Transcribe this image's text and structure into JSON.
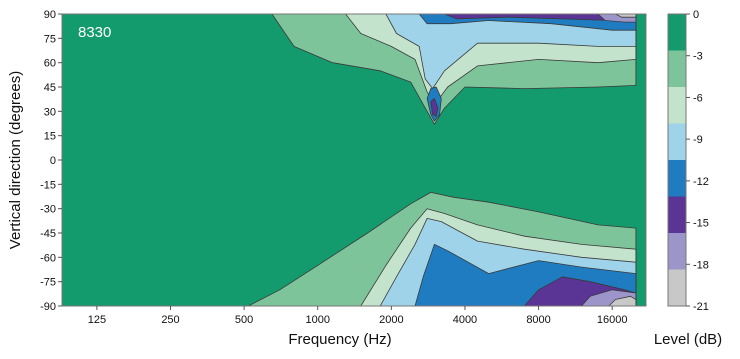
{
  "chart_data": {
    "type": "heatmap",
    "title": "",
    "annotation": "8330",
    "xlabel": "Frequency (Hz)",
    "ylabel": "Vertical direction (degrees)",
    "x_scale": "log",
    "xlim": [
      90,
      22000
    ],
    "ylim": [
      -90,
      90
    ],
    "x_ticks": [
      {
        "value": 125,
        "label": "125"
      },
      {
        "value": 250,
        "label": "250"
      },
      {
        "value": 500,
        "label": "500"
      },
      {
        "value": 1000,
        "label": "1000"
      },
      {
        "value": 2000,
        "label": "2000"
      },
      {
        "value": 4000,
        "label": "4000"
      },
      {
        "value": 8000,
        "label": "8000"
      },
      {
        "value": 16000,
        "label": "16000"
      }
    ],
    "y_ticks": [
      {
        "value": 90,
        "label": "90"
      },
      {
        "value": 75,
        "label": "75"
      },
      {
        "value": 60,
        "label": "60"
      },
      {
        "value": 45,
        "label": "45"
      },
      {
        "value": 30,
        "label": "30"
      },
      {
        "value": 15,
        "label": "15"
      },
      {
        "value": 0,
        "label": "0"
      },
      {
        "value": -15,
        "label": "-15"
      },
      {
        "value": -30,
        "label": "-30"
      },
      {
        "value": -45,
        "label": "-45"
      },
      {
        "value": -60,
        "label": "-60"
      },
      {
        "value": -75,
        "label": "-75"
      },
      {
        "value": -90,
        "label": "-90"
      }
    ],
    "colorbar": {
      "label": "Level (dB)",
      "ticks": [
        "0",
        "-3",
        "-6",
        "-9",
        "-12",
        "-15",
        "-18",
        "-21"
      ],
      "colors": [
        "#139a6d",
        "#7ec49a",
        "#c3e3cc",
        "#9ed3ea",
        "#1f7cc1",
        "#5a3596",
        "#9b95c9",
        "#c8c8c8"
      ]
    },
    "background_color": "#139a6d",
    "contours": [
      {
        "level": -3,
        "color": "#7ec49a",
        "points": [
          [
            650,
            90
          ],
          [
            800,
            70
          ],
          [
            1150,
            60
          ],
          [
            1800,
            55
          ],
          [
            2400,
            48
          ],
          [
            2800,
            30
          ],
          [
            3000,
            22
          ],
          [
            3300,
            32
          ],
          [
            4000,
            45
          ],
          [
            7000,
            44
          ],
          [
            14000,
            45
          ],
          [
            20000,
            46
          ],
          [
            20000,
            90
          ]
        ]
      },
      {
        "level": -3,
        "color": "#7ec49a",
        "points": [
          [
            520,
            -90
          ],
          [
            700,
            -80
          ],
          [
            1000,
            -65
          ],
          [
            1600,
            -45
          ],
          [
            2400,
            -27
          ],
          [
            2900,
            -20
          ],
          [
            3600,
            -23
          ],
          [
            5000,
            -26
          ],
          [
            8000,
            -32
          ],
          [
            14000,
            -40
          ],
          [
            20000,
            -42
          ],
          [
            20000,
            -90
          ]
        ]
      },
      {
        "level": -6,
        "color": "#c3e3cc",
        "points": [
          [
            1300,
            90
          ],
          [
            1500,
            78
          ],
          [
            2000,
            70
          ],
          [
            2500,
            62
          ],
          [
            2800,
            42
          ],
          [
            3000,
            34
          ],
          [
            3400,
            45
          ],
          [
            4500,
            58
          ],
          [
            8000,
            62
          ],
          [
            14000,
            60
          ],
          [
            20000,
            62
          ],
          [
            20000,
            90
          ]
        ]
      },
      {
        "level": -6,
        "color": "#c3e3cc",
        "points": [
          [
            1500,
            -90
          ],
          [
            1900,
            -65
          ],
          [
            2400,
            -42
          ],
          [
            2800,
            -30
          ],
          [
            3300,
            -33
          ],
          [
            4500,
            -40
          ],
          [
            7000,
            -47
          ],
          [
            12000,
            -52
          ],
          [
            20000,
            -55
          ],
          [
            20000,
            -90
          ]
        ]
      },
      {
        "level": -9,
        "color": "#9ed3ea",
        "points": [
          [
            1900,
            90
          ],
          [
            2100,
            78
          ],
          [
            2600,
            70
          ],
          [
            2750,
            50
          ],
          [
            2950,
            44
          ],
          [
            3300,
            55
          ],
          [
            4500,
            72
          ],
          [
            8000,
            72
          ],
          [
            14000,
            70
          ],
          [
            20000,
            70
          ],
          [
            20000,
            90
          ]
        ]
      },
      {
        "level": -9,
        "color": "#9ed3ea",
        "points": [
          [
            1800,
            -90
          ],
          [
            2100,
            -72
          ],
          [
            2500,
            -52
          ],
          [
            2800,
            -36
          ],
          [
            3200,
            -38
          ],
          [
            4500,
            -50
          ],
          [
            7000,
            -55
          ],
          [
            12000,
            -60
          ],
          [
            20000,
            -63
          ],
          [
            20000,
            -90
          ]
        ]
      },
      {
        "level": -12,
        "color": "#1f7cc1",
        "points": [
          [
            2600,
            90
          ],
          [
            2800,
            84
          ],
          [
            3500,
            84
          ],
          [
            5000,
            86
          ],
          [
            9000,
            84
          ],
          [
            16000,
            80
          ],
          [
            20000,
            80
          ],
          [
            20000,
            90
          ]
        ]
      },
      {
        "level": -12,
        "color": "#1f7cc1",
        "points": [
          [
            2500,
            -90
          ],
          [
            2700,
            -72
          ],
          [
            3000,
            -52
          ],
          [
            3400,
            -56
          ],
          [
            5000,
            -70
          ],
          [
            8000,
            -62
          ],
          [
            12000,
            -66
          ],
          [
            20000,
            -70
          ],
          [
            20000,
            -90
          ]
        ]
      },
      {
        "level": -12,
        "color": "#1f7cc1",
        "points": [
          [
            2800,
            38
          ],
          [
            2900,
            28
          ],
          [
            3000,
            24
          ],
          [
            3150,
            28
          ],
          [
            3200,
            38
          ],
          [
            3050,
            45
          ],
          [
            2900,
            44
          ]
        ]
      },
      {
        "level": -15,
        "color": "#5a3596",
        "points": [
          [
            3300,
            90
          ],
          [
            3700,
            87
          ],
          [
            6000,
            88
          ],
          [
            10000,
            87
          ],
          [
            16000,
            86
          ],
          [
            20000,
            86
          ],
          [
            20000,
            90
          ]
        ]
      },
      {
        "level": -15,
        "color": "#5a3596",
        "points": [
          [
            7000,
            -90
          ],
          [
            8000,
            -80
          ],
          [
            10000,
            -72
          ],
          [
            13000,
            -75
          ],
          [
            18000,
            -80
          ],
          [
            20000,
            -82
          ],
          [
            20000,
            -90
          ]
        ]
      },
      {
        "level": -15,
        "color": "#5a3596",
        "points": [
          [
            2900,
            36
          ],
          [
            2950,
            28
          ],
          [
            3050,
            27
          ],
          [
            3100,
            32
          ],
          [
            3000,
            38
          ]
        ]
      },
      {
        "level": -18,
        "color": "#9b95c9",
        "points": [
          [
            14000,
            90
          ],
          [
            15000,
            86
          ],
          [
            18000,
            85
          ],
          [
            20000,
            85
          ],
          [
            20000,
            90
          ]
        ]
      },
      {
        "level": -18,
        "color": "#9b95c9",
        "points": [
          [
            12000,
            -90
          ],
          [
            13000,
            -84
          ],
          [
            16000,
            -80
          ],
          [
            20000,
            -82
          ],
          [
            20000,
            -90
          ]
        ]
      },
      {
        "level": -21,
        "color": "#c8c8c8",
        "points": [
          [
            16500,
            90
          ],
          [
            17500,
            88
          ],
          [
            20000,
            88
          ],
          [
            20000,
            90
          ]
        ]
      },
      {
        "level": -21,
        "color": "#c8c8c8",
        "points": [
          [
            15500,
            -90
          ],
          [
            16500,
            -86
          ],
          [
            19000,
            -84
          ],
          [
            20000,
            -86
          ],
          [
            20000,
            -90
          ]
        ]
      }
    ]
  }
}
